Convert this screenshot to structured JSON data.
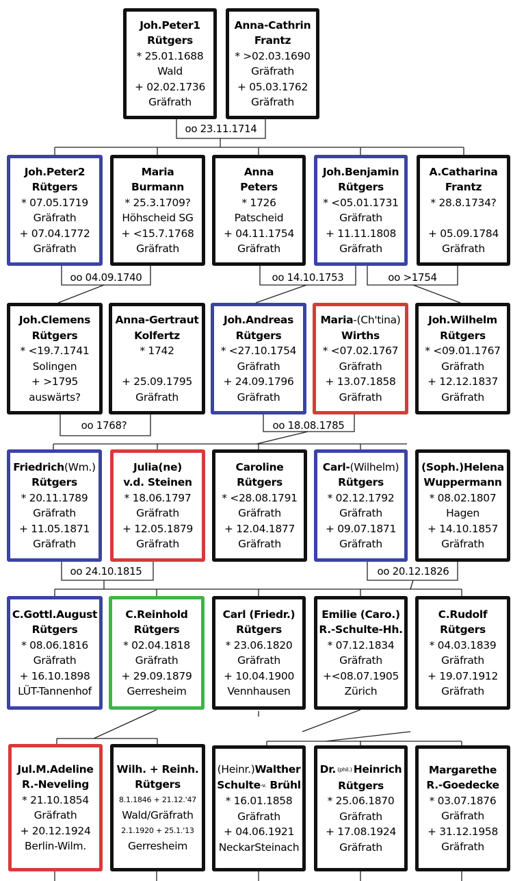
{
  "colors": {
    "default_border": "#111111",
    "blue_border": "#3b43a6",
    "red_border": "#d83a3a",
    "green_border": "#3db54a"
  },
  "marriages": {
    "m1": "oo 23.11.1714",
    "m2": "oo 04.09.1740",
    "m3": "oo 14.10.1753",
    "m4": "oo >1754",
    "m5": "oo 1768?",
    "m6": "oo 18.08.1785",
    "m7": "oo 24.10.1815",
    "m8": "oo 20.12.1826"
  },
  "people": {
    "g1p1": {
      "name1": "Joh.Peter1",
      "name2": "Rütgers",
      "l3": "* 25.01.1688",
      "l4": "Wald",
      "l5": "+ 02.02.1736",
      "l6": "Gräfrath"
    },
    "g1p2": {
      "name1": "Anna-Cathrin",
      "name2": "Frantz",
      "l3": "* >02.03.1690",
      "l4": "Gräfrath",
      "l5": "+ 05.03.1762",
      "l6": "Gräfrath"
    },
    "g2p1": {
      "name1": "Joh.Peter2",
      "name2": "Rütgers",
      "l3": "* 07.05.1719",
      "l4": "Gräfrath",
      "l5": "+ 07.04.1772",
      "l6": "Gräfrath"
    },
    "g2p2": {
      "name1": "Maria",
      "name2": "Burmann",
      "l3": "* 25.3.1709?",
      "l4": "Höhscheid SG",
      "l5": "+ <15.7.1768",
      "l6": "Gräfrath"
    },
    "g2p3": {
      "name1": "Anna",
      "name2": "Peters",
      "l3": "* 1726",
      "l4": "Patscheid",
      "l5": "+ 04.11.1754",
      "l6": "Gräfrath"
    },
    "g2p4": {
      "name1": "Joh.Benjamin",
      "name2": "Rütgers",
      "l3": "* <05.01.1731",
      "l4": "Gräfrath",
      "l5": "+ 11.11.1808",
      "l6": "Gräfrath"
    },
    "g2p5": {
      "name1": "A.Catharina",
      "name2": "Frantz",
      "l3": "* 28.8.1734?",
      "l5": "+ 05.09.1784",
      "l6": "Gräfrath"
    },
    "g3p1": {
      "name1": "Joh.Clemens",
      "name2": "Rütgers",
      "l3": "* <19.7.1741",
      "l4": "Solingen",
      "l5": "+ >1795",
      "l6": "auswärts?"
    },
    "g3p2": {
      "name1": "Anna-Gertraut",
      "name2": "Kolfertz",
      "l3": "* 1742",
      "l5": "+ 25.09.1795",
      "l6": "Gräfrath"
    },
    "g3p3": {
      "name1": "Joh.Andreas",
      "name2": "Rütgers",
      "l3": "* <27.10.1754",
      "l4": "Gräfrath",
      "l5": "+ 24.09.1796",
      "l6": "Gräfrath"
    },
    "g3p4": {
      "name1": "Maria",
      "name1b": "-(Ch'tina)",
      "name2": "Wirths",
      "l3": "* <07.02.1767",
      "l4": "Gräfrath",
      "l5": "+ 13.07.1858",
      "l6": "Gräfrath"
    },
    "g3p5": {
      "name1": "Joh.Wilhelm",
      "name2": "Rütgers",
      "l3": "* <09.01.1767",
      "l4": "Gräfrath",
      "l5": "+ 12.12.1837",
      "l6": "Gräfrath"
    },
    "g4p1": {
      "name1": "Friedrich",
      "name1b": "(Wm.)",
      "name2": "Rütgers",
      "l3": "* 20.11.1789",
      "l4": "Gräfrath",
      "l5": "+ 11.05.1871",
      "l6": "Gräfrath"
    },
    "g4p2": {
      "name1": "Julia(ne)",
      "name2": "v.d. Steinen",
      "l3": "* 18.06.1797",
      "l4": "Gräfrath",
      "l5": "+ 12.05.1879",
      "l6": "Gräfrath"
    },
    "g4p3": {
      "name1": "Caroline",
      "name2": "Rütgers",
      "l3": "* <28.08.1791",
      "l4": "Gräfrath",
      "l5": "+ 12.04.1877",
      "l6": "Gräfrath"
    },
    "g4p4": {
      "name1": "Carl-",
      "name1b": "(Wilhelm)",
      "name2": "Rütgers",
      "l3": "* 02.12.1792",
      "l4": "Gräfrath",
      "l5": "+ 09.07.1871",
      "l6": "Gräfrath"
    },
    "g4p5": {
      "name1": "(Soph.)Helena",
      "name2": "Wuppermann",
      "l3": "* 08.02.1807",
      "l4": "Hagen",
      "l5": "+ 14.10.1857",
      "l6": "Gräfrath"
    },
    "g5p1": {
      "name1": "C.Gottl.August",
      "name2": "Rütgers",
      "l3": "* 08.06.1816",
      "l4": "Gräfrath",
      "l5": "+ 16.10.1898",
      "l6": "LÜT-Tannenhof"
    },
    "g5p2": {
      "name1": "C.Reinhold",
      "name2": "Rütgers",
      "l3": "* 02.04.1818",
      "l4": "Gräfrath",
      "l5": "+ 29.09.1879",
      "l6": "Gerresheim"
    },
    "g5p3": {
      "name1": "Carl (Friedr.)",
      "name2": "Rütgers",
      "l3": "* 23.06.1820",
      "l4": "Gräfrath",
      "l5": "+ 10.04.1900",
      "l6": "Vennhausen"
    },
    "g5p4": {
      "name1": "Emilie (Caro.)",
      "name2": "R.-Schulte-Hh.",
      "l3": "* 07.12.1834",
      "l4": "Gräfrath",
      "l5": "+<08.07.1905",
      "l6": "Zürich"
    },
    "g5p5": {
      "name1": "C.Rudolf",
      "name2": "Rütgers",
      "l3": "* 04.03.1839",
      "l4": "Gräfrath",
      "l5": "+ 19.07.1912",
      "l6": "Gräfrath"
    },
    "g6p1": {
      "name1": "Jul.M.Adeline",
      "name2": "R.-Neveling",
      "l3": "* 21.10.1854",
      "l4": "Gräfrath",
      "l5": "+ 20.12.1924",
      "l6": "Berlin-Wilm."
    },
    "g6p2": {
      "name1": "Wilh. + Reinh.",
      "name2": "Rütgers",
      "l3": "8.1.1846 + 21.12.'47",
      "l4": "Wald/Gräfrath",
      "l5": "2.1.1920 + 25.1.'13",
      "l6": "Gerresheim"
    },
    "g6p3": {
      "pre": "(Heinr.)",
      "name1": "Walther",
      "name2a": "Schulte",
      "name2sup": "-v.",
      "name2b": " Brühl",
      "l3": "* 16.01.1858",
      "l4": "Gräfrath",
      "l5": "+ 04.06.1921",
      "l6": "NeckarSteinach"
    },
    "g6p4": {
      "pre": "Dr.",
      "presup": " (phil.) ",
      "name1": "Heinrich",
      "name2": "Rütgers",
      "l3": "* 25.06.1870",
      "l4": "Gräfrath",
      "l5": "+ 17.08.1924",
      "l6": "Gräfrath"
    },
    "g6p5": {
      "name1": "Margarethe",
      "name2": "R.-Goedecke",
      "l3": "* 03.07.1876",
      "l4": "Gräfrath",
      "l5": "+ 31.12.1958",
      "l6": "Gräfrath"
    }
  }
}
